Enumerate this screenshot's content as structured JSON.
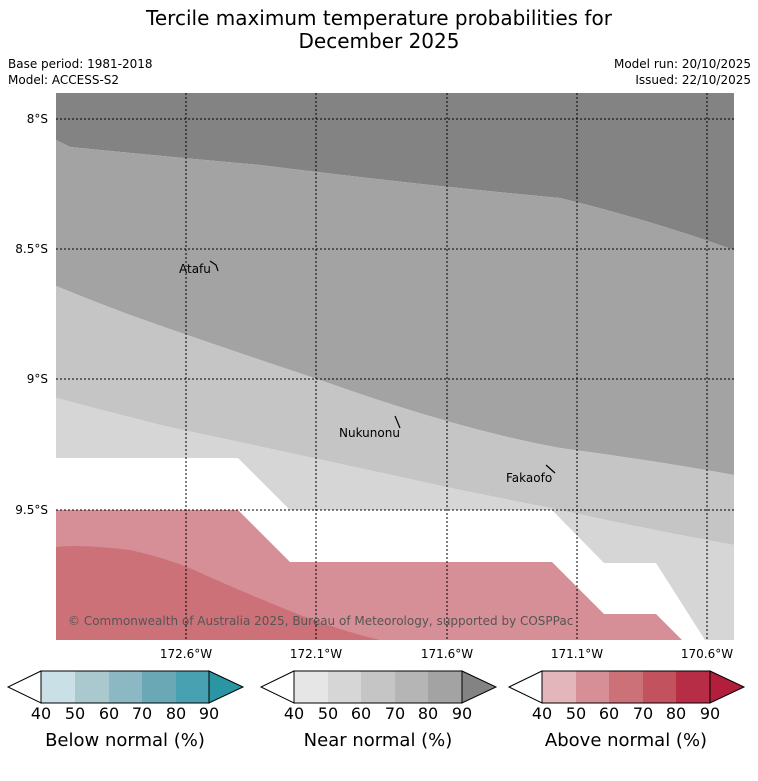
{
  "title": {
    "line1": "Tercile maximum temperature probabilities for",
    "line2": "December 2025"
  },
  "meta": {
    "base_period": "Base period: 1981-2018",
    "model": "Model: ACCESS-S2",
    "model_run": "Model run: 20/10/2025",
    "issued": "Issued: 22/10/2025"
  },
  "map": {
    "lat_labels": [
      "8°S",
      "8.5°S",
      "9°S",
      "9.5°S"
    ],
    "lon_labels": [
      "172.6°W",
      "172.1°W",
      "171.6°W",
      "171.1°W",
      "170.6°W"
    ],
    "places": [
      "Atafu",
      "Nukunonu",
      "Fakaofo"
    ],
    "copyright": "© Commonwealth of Australia 2025, Bureau of Meteorology, supported by COSPPac"
  },
  "legend": {
    "ticks": [
      "40",
      "50",
      "60",
      "70",
      "80",
      "90"
    ],
    "colorbars": [
      {
        "label": "Below normal (%)",
        "colors": [
          "#c8e0e6",
          "#a9c9ce",
          "#8bb8c2",
          "#6aa8b6",
          "#48a1b1",
          "#2a96a4"
        ]
      },
      {
        "label": "Near normal (%)",
        "colors": [
          "#e6e6e6",
          "#d6d6d6",
          "#c5c5c5",
          "#b5b5b5",
          "#a3a3a3",
          "#838383"
        ]
      },
      {
        "label": "Above normal (%)",
        "colors": [
          "#e2b6ba",
          "#d68f96",
          "#cd7179",
          "#c2525e",
          "#b62d45",
          "#b41e3d"
        ]
      }
    ]
  }
}
